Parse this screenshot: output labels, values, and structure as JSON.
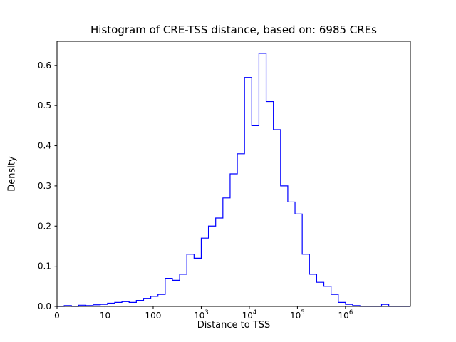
{
  "chart_data": {
    "type": "bar",
    "subtype": "step-histogram",
    "title": "Histogram of CRE-TSS distance, based on: 6985 CREs",
    "xlabel": "Distance to TSS",
    "ylabel": "Density",
    "x_scale": "log10",
    "xlim_log10": [
      0,
      7.35
    ],
    "ylim": [
      0,
      0.66
    ],
    "grid": false,
    "legend": "none",
    "line_color": "#0000ff",
    "bin_start_log10": 0,
    "bin_width_log10": 0.15,
    "densities": [
      0,
      0.002,
      0,
      0.003,
      0.002,
      0.004,
      0.005,
      0.008,
      0.01,
      0.012,
      0.01,
      0.015,
      0.02,
      0.025,
      0.03,
      0.07,
      0.065,
      0.08,
      0.13,
      0.12,
      0.17,
      0.2,
      0.22,
      0.27,
      0.33,
      0.38,
      0.57,
      0.45,
      0.63,
      0.51,
      0.44,
      0.3,
      0.26,
      0.23,
      0.13,
      0.08,
      0.06,
      0.05,
      0.03,
      0.01,
      0.005,
      0.002,
      0,
      0,
      0,
      0.005,
      0,
      0,
      0
    ],
    "x_ticks": [
      {
        "label": "0",
        "t": 0
      },
      {
        "label": "10",
        "t": 1
      },
      {
        "label": "100",
        "t": 2
      },
      {
        "base": "10",
        "exp": "3",
        "t": 3
      },
      {
        "base": "10",
        "exp": "4",
        "t": 4
      },
      {
        "base": "10",
        "exp": "5",
        "t": 5
      },
      {
        "base": "10",
        "exp": "6",
        "t": 6
      }
    ],
    "y_ticks": [
      {
        "label": "0.0",
        "v": 0.0
      },
      {
        "label": "0.1",
        "v": 0.1
      },
      {
        "label": "0.2",
        "v": 0.2
      },
      {
        "label": "0.3",
        "v": 0.3
      },
      {
        "label": "0.4",
        "v": 0.4
      },
      {
        "label": "0.5",
        "v": 0.5
      },
      {
        "label": "0.6",
        "v": 0.6
      }
    ]
  }
}
